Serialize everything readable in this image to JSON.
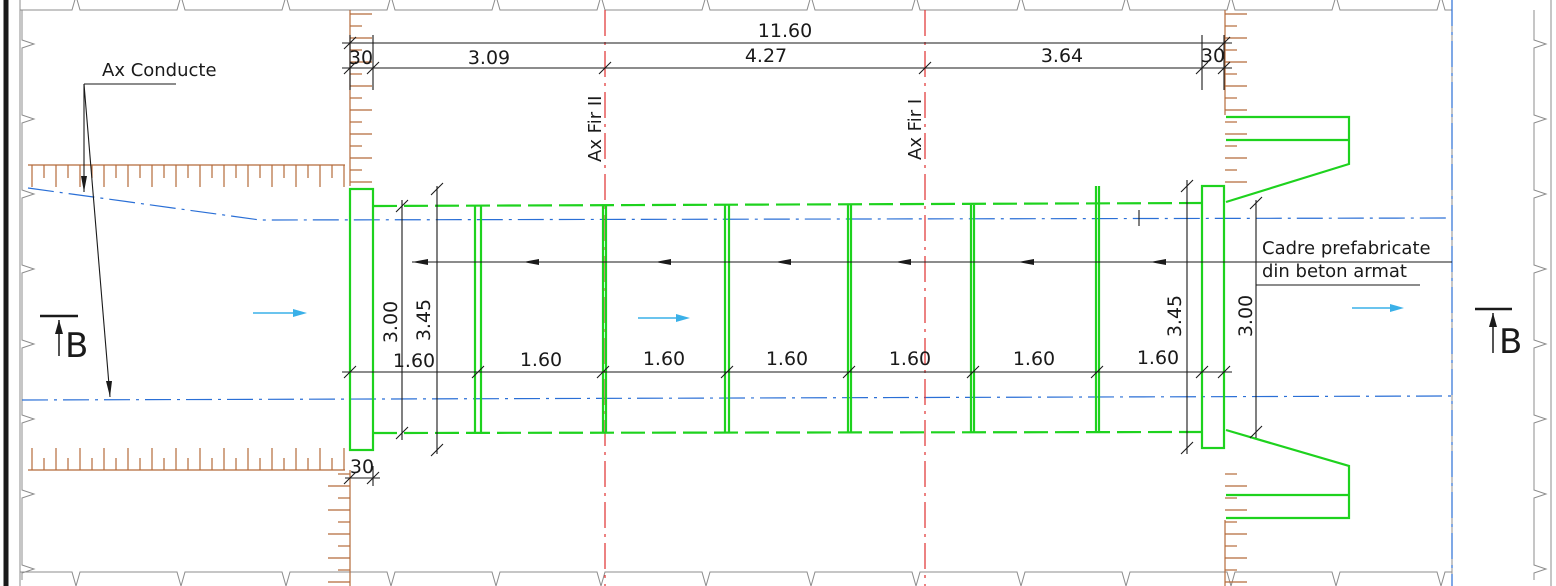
{
  "dimensions": {
    "overall": "11.60",
    "wall_left": "30",
    "span_left": "3.09",
    "span_middle": "4.27",
    "span_right": "3.64",
    "wall_right": "30",
    "wall_bottom": "30",
    "frame_widths": [
      "1.60",
      "1.60",
      "1.60",
      "1.60",
      "1.60",
      "1.60",
      "1.60"
    ],
    "height_left_inner": "3.00",
    "height_left_outer": "3.45",
    "height_right_outer": "3.45",
    "height_right_inner": "3.00"
  },
  "labels": {
    "pipe_axis": "Ax Conducte",
    "axis_fir_2": "Ax Fir II",
    "axis_fir_1": "Ax Fir I",
    "note_line1": "Cadre prefabricate",
    "note_line2": "din beton armat"
  },
  "section_marks": {
    "left": "B",
    "right": "B"
  },
  "colors": {
    "frames": "#1ed21e",
    "pipe_axis": "#2a6fd6",
    "track_axis": "#e03030",
    "flow_arrow": "#3ab0e8",
    "earth_hatch": "#b56a3a"
  }
}
